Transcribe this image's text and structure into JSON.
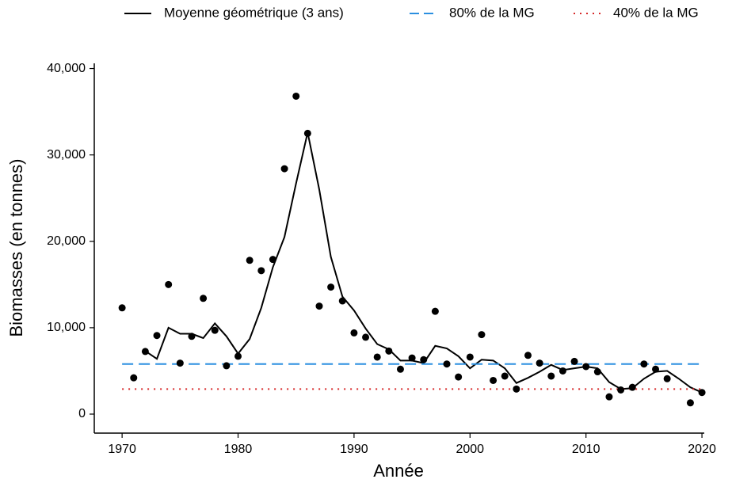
{
  "chart_data": {
    "type": "line",
    "x_label": "Année",
    "y_label": "Biomasses (en tonnes)",
    "x": [
      1970,
      1971,
      1972,
      1973,
      1974,
      1975,
      1976,
      1977,
      1978,
      1979,
      1980,
      1981,
      1982,
      1983,
      1984,
      1985,
      1986,
      1987,
      1988,
      1989,
      1990,
      1991,
      1992,
      1993,
      1994,
      1995,
      1996,
      1997,
      1998,
      1999,
      2000,
      2001,
      2002,
      2003,
      2004,
      2005,
      2006,
      2007,
      2008,
      2009,
      2010,
      2011,
      2012,
      2013,
      2014,
      2015,
      2016,
      2017,
      2018,
      2019,
      2020
    ],
    "points": {
      "color": "#000000",
      "values": [
        12300,
        4200,
        7250,
        9100,
        15000,
        5900,
        9000,
        13400,
        9700,
        5600,
        6700,
        17800,
        16600,
        17900,
        28400,
        36800,
        32500,
        12500,
        14700,
        13100,
        9400,
        8900,
        6600,
        7300,
        5200,
        6500,
        6300,
        11900,
        5800,
        4300,
        6600,
        9200,
        3900,
        4400,
        2900,
        6800,
        5900,
        4400,
        5000,
        6100,
        5500,
        4900,
        2000,
        2800,
        3100,
        5800,
        5200,
        4100,
        null,
        1300,
        2500
      ]
    },
    "series": [
      {
        "name": "Moyenne géométrique (3 ans)",
        "color": "#000000",
        "dash": "solid",
        "values": [
          null,
          null,
          7300,
          6400,
          10000,
          9300,
          9300,
          8800,
          10500,
          9000,
          7000,
          8700,
          12300,
          17000,
          20500,
          26700,
          32600,
          26000,
          18200,
          13600,
          12000,
          9900,
          8100,
          7500,
          6200,
          6200,
          5900,
          7900,
          7600,
          6700,
          5300,
          6300,
          6200,
          5300,
          3600,
          4200,
          4900,
          5700,
          5100,
          5300,
          5500,
          5300,
          3700,
          2900,
          3000,
          4100,
          4900,
          5000,
          4100,
          3100,
          2500
        ]
      },
      {
        "name": "80% de la MG",
        "color": "#2b8fe0",
        "dash": "dashed",
        "value": 5800
      },
      {
        "name": "40% de la MG",
        "color": "#d62728",
        "dash": "dotted",
        "value": 2900
      }
    ],
    "xlim": [
      1967.6,
      2020.2
    ],
    "xticks": [
      1970,
      1980,
      1990,
      2000,
      2010,
      2020
    ],
    "ylim": [
      -2200,
      40600
    ],
    "yticks": [
      0,
      {
        "value": 10000,
        "label": "10,000"
      },
      {
        "value": 20000,
        "label": "20,000"
      },
      {
        "value": 30000,
        "label": "30,000"
      },
      {
        "value": 40000,
        "label": "40,000"
      }
    ],
    "legend": "top",
    "grid": false
  }
}
